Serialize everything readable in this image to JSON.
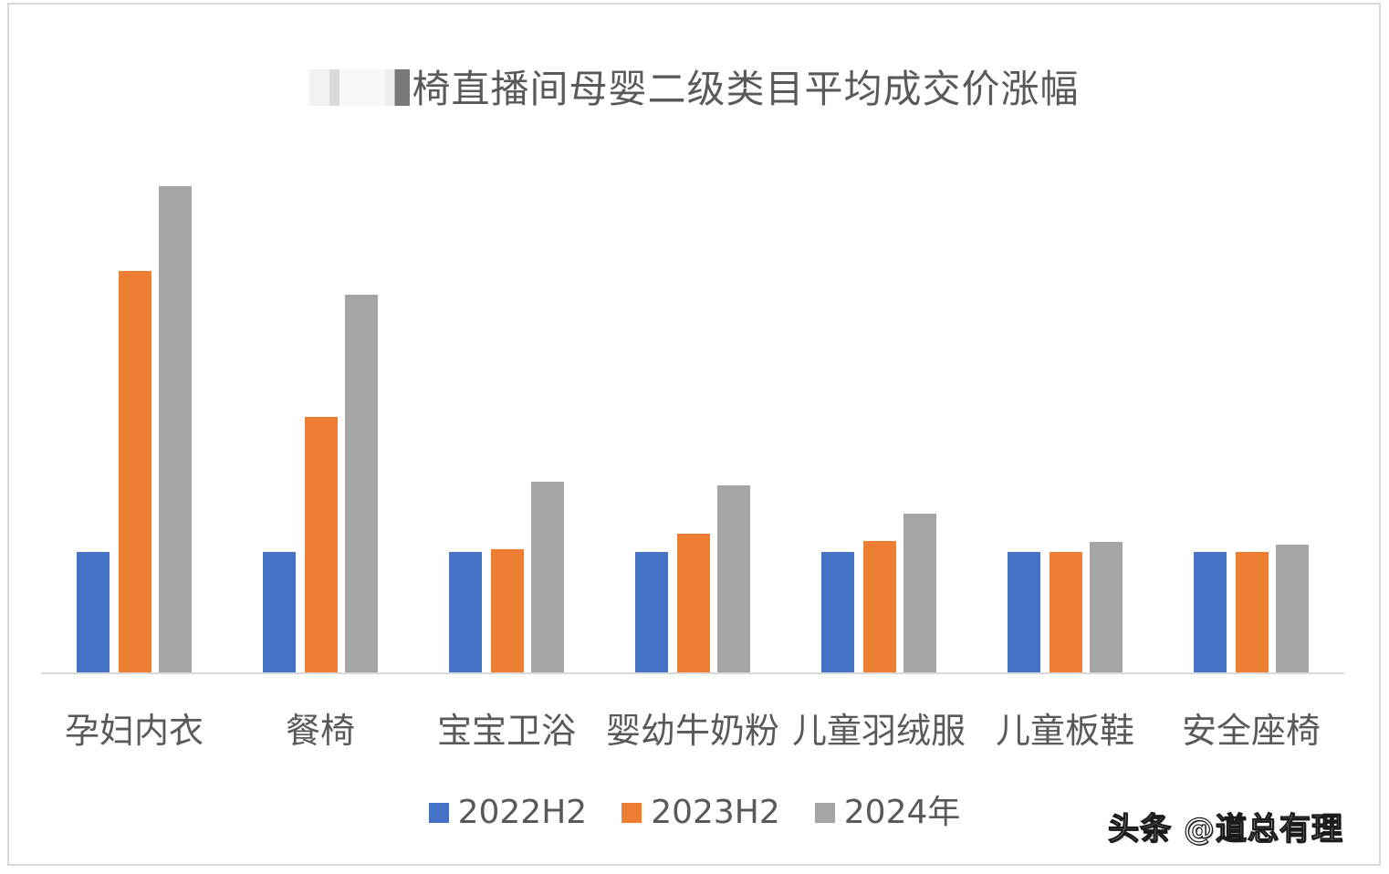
{
  "title": {
    "redacted_prefix": "",
    "text": "椅直播间母婴二级类目平均成交价涨幅"
  },
  "watermark": "头条 @道总有理",
  "colors": {
    "series_2022H2": "#4472C4",
    "series_2023H2": "#ED7D31",
    "series_2024": "#A5A5A5",
    "axis": "#D9D9D9",
    "text": "#595959"
  },
  "legend": [
    {
      "label": "2022H2",
      "color": "#4472C4"
    },
    {
      "label": "2023H2",
      "color": "#ED7D31"
    },
    {
      "label": "2024年",
      "color": "#A5A5A5"
    }
  ],
  "categories": [
    "孕妇内衣",
    "餐椅",
    "宝宝卫浴",
    "婴幼牛奶粉",
    "儿童羽绒服",
    "儿童板鞋",
    "安全座椅"
  ],
  "chart_data": {
    "type": "bar",
    "title": "椅直播间母婴二级类目平均成交价涨幅 (title prefix obscured)",
    "xlabel": "",
    "ylabel": "",
    "categories": [
      "孕妇内衣",
      "餐椅",
      "宝宝卫浴",
      "婴幼牛奶粉",
      "儿童羽绒服",
      "儿童板鞋",
      "安全座椅"
    ],
    "series": [
      {
        "name": "2022H2",
        "color": "#4472C4",
        "values": [
          100,
          100,
          100,
          100,
          100,
          100,
          100
        ]
      },
      {
        "name": "2023H2",
        "color": "#ED7D31",
        "values": [
          333,
          212,
          102,
          115,
          109,
          100,
          100
        ]
      },
      {
        "name": "2024年",
        "color": "#A5A5A5",
        "values": [
          404,
          314,
          158,
          155,
          132,
          108,
          106
        ]
      }
    ],
    "value_note": "No y-axis shown; values are relative index estimates with 2022H2 = 100, read from bar pixel heights",
    "ylim": [
      0,
      420
    ],
    "grid": false,
    "legend_position": "bottom"
  }
}
